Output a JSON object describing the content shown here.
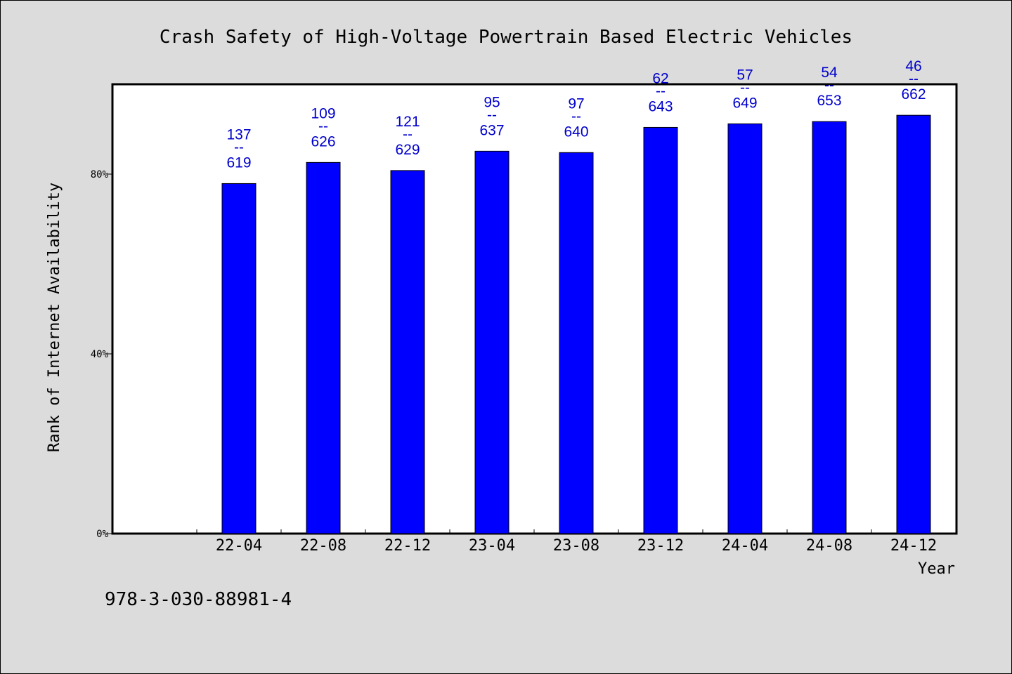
{
  "chart_data": {
    "type": "bar",
    "title": "Crash Safety of High-Voltage Powertrain Based Electric Vehicles",
    "xlabel": "Year",
    "ylabel": "Rank of Internet Availability",
    "categories": [
      "22-04",
      "22-08",
      "22-12",
      "23-04",
      "23-08",
      "23-12",
      "24-04",
      "24-08",
      "24-12"
    ],
    "series": [
      {
        "values": [
          77.9,
          82.6,
          80.8,
          85.1,
          84.8,
          90.4,
          91.2,
          91.7,
          93.1
        ]
      }
    ],
    "data_labels": [
      {
        "top": "137",
        "sep": "--",
        "bottom": "619"
      },
      {
        "top": "109",
        "sep": "--",
        "bottom": "626"
      },
      {
        "top": "121",
        "sep": "--",
        "bottom": "629"
      },
      {
        "top": "95",
        "sep": "--",
        "bottom": "637"
      },
      {
        "top": "97",
        "sep": "--",
        "bottom": "640"
      },
      {
        "top": "62",
        "sep": "--",
        "bottom": "643"
      },
      {
        "top": "57",
        "sep": "--",
        "bottom": "649"
      },
      {
        "top": "54",
        "sep": "--",
        "bottom": "653"
      },
      {
        "top": "46",
        "sep": "--",
        "bottom": "662"
      }
    ],
    "y_ticks": [
      "0%",
      "40%",
      "80%"
    ],
    "y_tick_values": [
      0,
      40,
      80
    ],
    "ylim": [
      0,
      100
    ],
    "grid": false,
    "legend": "none",
    "colors": {
      "bar": "#0000ff",
      "bar_edge": "#000000",
      "label": "#0000cc",
      "plot_bg": "#ffffff",
      "page_bg": "#dcdcdc"
    }
  },
  "footer": {
    "identifier": "978-3-030-88981-4"
  }
}
